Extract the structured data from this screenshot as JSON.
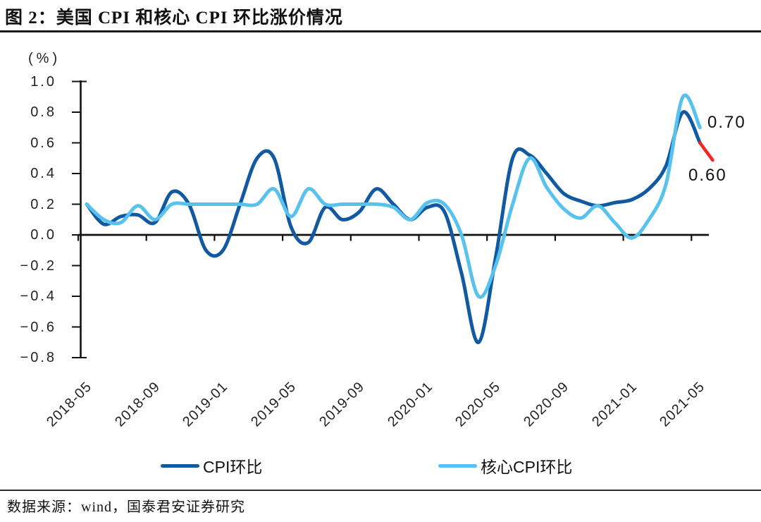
{
  "figure": {
    "title": "图 2：美国 CPI 和核心 CPI 环比涨价情况",
    "source_note": "数据来源：wind，国泰君安证券研究"
  },
  "chart_data": {
    "type": "line",
    "title": "图 2：美国 CPI 和核心 CPI 环比涨价情况",
    "unit_label": "(%)",
    "xlabel": "",
    "ylabel": "(%)",
    "ylim": [
      -0.8,
      1.0
    ],
    "grid": false,
    "legend_position": "bottom",
    "x": [
      "2018-05",
      "2018-06",
      "2018-07",
      "2018-08",
      "2018-09",
      "2018-10",
      "2018-11",
      "2018-12",
      "2019-01",
      "2019-02",
      "2019-03",
      "2019-04",
      "2019-05",
      "2019-06",
      "2019-07",
      "2019-08",
      "2019-09",
      "2019-10",
      "2019-11",
      "2019-12",
      "2020-01",
      "2020-02",
      "2020-03",
      "2020-04",
      "2020-05",
      "2020-06",
      "2020-07",
      "2020-08",
      "2020-09",
      "2020-10",
      "2020-11",
      "2020-12",
      "2021-01",
      "2021-02",
      "2021-03",
      "2021-04",
      "2021-05"
    ],
    "series": [
      {
        "name": "CPI环比",
        "color": "#1159A3",
        "values": [
          0.2,
          0.07,
          0.12,
          0.13,
          0.08,
          0.28,
          0.2,
          -0.1,
          -0.1,
          0.2,
          0.5,
          0.5,
          0.05,
          -0.05,
          0.18,
          0.1,
          0.15,
          0.3,
          0.2,
          0.1,
          0.18,
          0.15,
          -0.25,
          -0.7,
          -0.15,
          0.5,
          0.52,
          0.4,
          0.27,
          0.22,
          0.19,
          0.21,
          0.23,
          0.3,
          0.45,
          0.8,
          0.6
        ]
      },
      {
        "name": "核心CPI环比",
        "color": "#58C2EF",
        "values": [
          0.2,
          0.1,
          0.08,
          0.19,
          0.1,
          0.2,
          0.2,
          0.2,
          0.2,
          0.2,
          0.2,
          0.3,
          0.12,
          0.3,
          0.2,
          0.2,
          0.2,
          0.2,
          0.18,
          0.1,
          0.21,
          0.2,
          0.0,
          -0.4,
          -0.2,
          0.2,
          0.5,
          0.31,
          0.17,
          0.11,
          0.19,
          0.08,
          -0.02,
          0.1,
          0.33,
          0.9,
          0.7
        ]
      }
    ],
    "x_tick_labels": [
      "2018-05",
      "2018-09",
      "2019-01",
      "2019-05",
      "2019-09",
      "2020-01",
      "2020-05",
      "2020-09",
      "2021-01",
      "2021-05"
    ],
    "y_tick_labels": [
      "1.0",
      "0.8",
      "0.6",
      "0.4",
      "0.2",
      "0.0",
      "-0.2",
      "-0.4",
      "-0.6",
      "-0.8"
    ],
    "end_labels": [
      {
        "series": "核心CPI环比",
        "text": "0.70",
        "value": 0.7
      },
      {
        "series": "CPI环比",
        "text": "0.60",
        "value": 0.6
      }
    ],
    "last_segment_highlight": {
      "series": "CPI环比",
      "color": "#F5261F"
    }
  }
}
